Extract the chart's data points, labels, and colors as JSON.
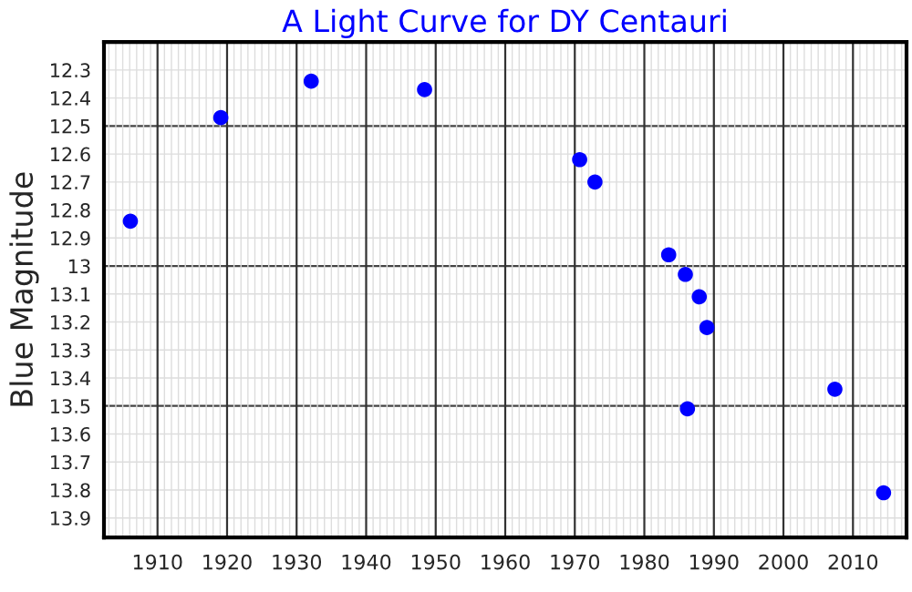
{
  "chart_data": {
    "type": "scatter",
    "title": "A Light Curve for DY Centauri",
    "ylabel": "Blue Magnitude",
    "x": [
      1906.1,
      1919.1,
      1932.1,
      1948.4,
      1970.7,
      1972.9,
      1983.5,
      1985.9,
      1987.9,
      1989.0,
      1986.2,
      2007.4,
      2014.4
    ],
    "series": [
      {
        "color": "#0000ff",
        "values": [
          12.84,
          12.47,
          12.34,
          12.37,
          12.62,
          12.7,
          12.96,
          13.03,
          13.11,
          13.22,
          13.51,
          13.44,
          13.81
        ]
      }
    ],
    "xlim": [
      1902.3,
      2017.7
    ],
    "xticks": [
      1910,
      1920,
      1930,
      1940,
      1950,
      1960,
      1970,
      1980,
      1990,
      2000,
      2010
    ],
    "ylim": [
      13.97,
      12.2
    ],
    "yticks": [
      12.3,
      12.4,
      12.5,
      12.6,
      12.7,
      12.8,
      12.9,
      13,
      13.1,
      13.2,
      13.3,
      13.4,
      13.5,
      13.6,
      13.7,
      13.8,
      13.9
    ],
    "grid": true,
    "marker": "circle"
  }
}
